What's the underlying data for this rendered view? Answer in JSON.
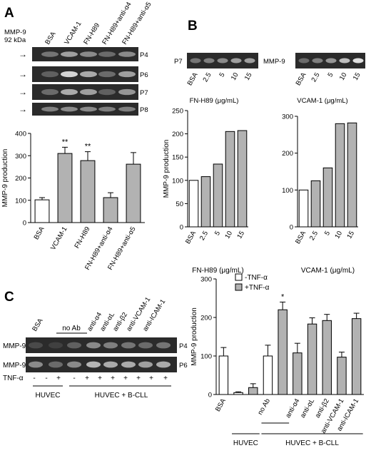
{
  "panels": {
    "a": "A",
    "b": "B",
    "c": "C"
  },
  "panel_a": {
    "marker_label": "MMP-9",
    "marker_kda": "92 kDa",
    "lanes": [
      "BSA",
      "VCAM-1",
      "FN-H89",
      "FN-H89+anti-α4",
      "FN-H89+anti-α5"
    ],
    "blot_rows": [
      "P4",
      "P6",
      "P7",
      "P8"
    ],
    "arrow": "→"
  },
  "panel_b": {
    "blot_row": "P7",
    "marker_label": "MMP-9",
    "lanes": [
      "BSA",
      "2.5",
      "5",
      "10",
      "15"
    ],
    "group_label_left": "FN-H89 (μg/mL)",
    "group_label_right": "VCAM-1 (μg/mL)"
  },
  "panel_c": {
    "blot_lanes": [
      "BSA",
      "no Ab",
      "anti-α4",
      "anti-αL",
      "anti-β2",
      "anti-VCAM-1",
      "anti-ICAM-1"
    ],
    "row_labels": [
      "MMP-9",
      "MMP-9"
    ],
    "row_tags": [
      "P4",
      "P6"
    ],
    "tnf_label": "TNF-α",
    "tnf_signs": [
      "-",
      "-",
      "+",
      "-",
      "+",
      "+",
      "+",
      "+",
      "+",
      "+",
      "+"
    ],
    "groups": [
      "HUVEC",
      "HUVEC + B-CLL"
    ],
    "bar_groups": [
      "HUVEC",
      "HUVEC + B-CLL"
    ],
    "bar_no_ab": "no Ab"
  },
  "chart_data": [
    {
      "id": "A",
      "type": "bar",
      "categories": [
        "BSA",
        "VCAM-1",
        "FN-H89",
        "FN-H89+anti-α4",
        "FN-H89+anti-α5"
      ],
      "values": [
        102,
        310,
        278,
        112,
        262
      ],
      "errors": [
        10,
        28,
        40,
        22,
        52
      ],
      "annotations": [
        "",
        "**",
        "**",
        "",
        ""
      ],
      "ylabel": "MMP-9 production",
      "ylim": [
        0,
        400
      ],
      "yticks": [
        0,
        100,
        200,
        300,
        400
      ],
      "colors": [
        "#ffffff",
        "#b2b2b2",
        "#b2b2b2",
        "#b2b2b2",
        "#b2b2b2"
      ]
    },
    {
      "id": "B-left",
      "type": "bar",
      "categories": [
        "BSA",
        "2.5",
        "5",
        "10",
        "15"
      ],
      "values": [
        100,
        108,
        135,
        205,
        207
      ],
      "xlabel": "FN-H89 (μg/mL)",
      "ylabel": "MMP-9 production",
      "ylim": [
        0,
        250
      ],
      "yticks": [
        0,
        50,
        100,
        150,
        200,
        250
      ],
      "colors": [
        "#ffffff",
        "#b2b2b2",
        "#b2b2b2",
        "#b2b2b2",
        "#b2b2b2"
      ]
    },
    {
      "id": "B-right",
      "type": "bar",
      "categories": [
        "BSA",
        "2.5",
        "5",
        "10",
        "15"
      ],
      "values": [
        100,
        125,
        160,
        280,
        282
      ],
      "xlabel": "VCAM-1 (μg/mL)",
      "ylim": [
        0,
        300
      ],
      "yticks": [
        0,
        100,
        200,
        300
      ],
      "colors": [
        "#ffffff",
        "#b2b2b2",
        "#b2b2b2",
        "#b2b2b2",
        "#b2b2b2"
      ]
    },
    {
      "id": "C",
      "type": "bar",
      "categories": [
        "BSA",
        "",
        "",
        "no Ab",
        "",
        "anti-α4",
        "anti-αL",
        "anti-β2",
        "anti-VCAM-1",
        "anti-ICAM-1"
      ],
      "values": [
        100,
        5,
        18,
        100,
        220,
        108,
        183,
        192,
        97,
        197
      ],
      "errors": [
        22,
        2,
        10,
        28,
        20,
        25,
        16,
        16,
        13,
        14
      ],
      "annotations": [
        "",
        "",
        "",
        "",
        "*",
        "",
        "",
        "",
        "",
        ""
      ],
      "ylabel": "MMP-9 production",
      "ylim": [
        0,
        300
      ],
      "yticks": [
        0,
        100,
        200,
        300
      ],
      "legend": [
        "-TNF-α",
        "+TNF-α"
      ],
      "legend_colors": [
        "#ffffff",
        "#b2b2b2"
      ],
      "colors": [
        "#ffffff",
        "#ffffff",
        "#b2b2b2",
        "#ffffff",
        "#b2b2b2",
        "#b2b2b2",
        "#b2b2b2",
        "#b2b2b2",
        "#b2b2b2",
        "#b2b2b2"
      ]
    }
  ]
}
